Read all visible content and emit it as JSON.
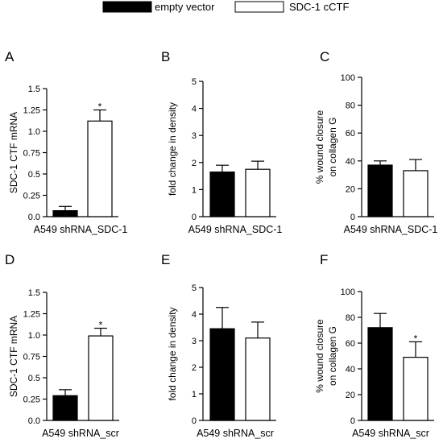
{
  "legend": {
    "entries": [
      {
        "label": "empty vector",
        "fill": "#000000"
      },
      {
        "label": "SDC-1 cCTF",
        "fill": "#ffffff"
      }
    ]
  },
  "colors": {
    "empty_vector": "#000000",
    "sdc1_cctf": "#ffffff",
    "stroke": "#000000"
  },
  "chart_data": [
    {
      "panel": "A",
      "type": "bar",
      "ylabel": "SDC-1 CTF mRNA",
      "xlabel": "A549 shRNA_SDC-1",
      "ylim": [
        0,
        1.5
      ],
      "yticks": [
        0.0,
        0.25,
        0.5,
        0.75,
        1.0,
        1.25,
        1.5
      ],
      "ytick_labels": [
        "0.0",
        "0.25",
        "0.5",
        "0.75",
        "1.0",
        "1.25",
        "1.5"
      ],
      "series": [
        {
          "name": "empty vector",
          "value": 0.07,
          "error": 0.05
        },
        {
          "name": "SDC-1 cCTF",
          "value": 1.12,
          "error": 0.13
        }
      ],
      "annotations": [
        {
          "series": 1,
          "text": "*"
        }
      ]
    },
    {
      "panel": "B",
      "type": "bar",
      "ylabel": "fold change  in density",
      "xlabel": "A549 shRNA_SDC-1",
      "ylim": [
        0,
        5
      ],
      "yticks": [
        0,
        1,
        2,
        3,
        4,
        5
      ],
      "ytick_labels": [
        "0",
        "1",
        "2",
        "3",
        "4",
        "5"
      ],
      "series": [
        {
          "name": "empty vector",
          "value": 1.65,
          "error": 0.25
        },
        {
          "name": "SDC-1 cCTF",
          "value": 1.75,
          "error": 0.3
        }
      ],
      "annotations": []
    },
    {
      "panel": "C",
      "type": "bar",
      "ylabel": "% wound closure on collagen G",
      "xlabel": "A549 shRNA_SDC-1",
      "ylim": [
        0,
        100
      ],
      "yticks": [
        0,
        20,
        40,
        60,
        80,
        100
      ],
      "ytick_labels": [
        "0",
        "20",
        "40",
        "60",
        "80",
        "100"
      ],
      "series": [
        {
          "name": "empty vector",
          "value": 37,
          "error": 3
        },
        {
          "name": "SDC-1 cCTF",
          "value": 33,
          "error": 8
        }
      ],
      "annotations": []
    },
    {
      "panel": "D",
      "type": "bar",
      "ylabel": "SDC-1 CTF mRNA",
      "xlabel": "A549 shRNA_scr",
      "ylim": [
        0,
        1.5
      ],
      "yticks": [
        0.0,
        0.25,
        0.5,
        0.75,
        1.0,
        1.25,
        1.5
      ],
      "ytick_labels": [
        "0.0",
        "0.25",
        "0.5",
        "0.75",
        "1.0",
        "1.25",
        "1.5"
      ],
      "series": [
        {
          "name": "empty vector",
          "value": 0.29,
          "error": 0.07
        },
        {
          "name": "SDC-1 cCTF",
          "value": 0.99,
          "error": 0.09
        }
      ],
      "annotations": [
        {
          "series": 1,
          "text": "*"
        }
      ]
    },
    {
      "panel": "E",
      "type": "bar",
      "ylabel": "fold change  in density",
      "xlabel": "A549 shRNA_scr",
      "ylim": [
        0,
        5
      ],
      "yticks": [
        0,
        1,
        2,
        3,
        4,
        5
      ],
      "ytick_labels": [
        "0",
        "1",
        "2",
        "3",
        "4",
        "5"
      ],
      "series": [
        {
          "name": "empty vector",
          "value": 3.45,
          "error": 0.8
        },
        {
          "name": "SDC-1 cCTF",
          "value": 3.1,
          "error": 0.6
        }
      ],
      "annotations": []
    },
    {
      "panel": "F",
      "type": "bar",
      "ylabel": "% wound closure on collagen G",
      "xlabel": "A549 shRNA_scr",
      "ylim": [
        0,
        100
      ],
      "yticks": [
        0,
        20,
        40,
        60,
        80,
        100
      ],
      "ytick_labels": [
        "0",
        "20",
        "40",
        "60",
        "80",
        "100"
      ],
      "series": [
        {
          "name": "empty vector",
          "value": 72,
          "error": 11
        },
        {
          "name": "SDC-1 cCTF",
          "value": 49,
          "error": 12
        }
      ],
      "annotations": [
        {
          "series": 1,
          "text": "*"
        }
      ]
    }
  ]
}
